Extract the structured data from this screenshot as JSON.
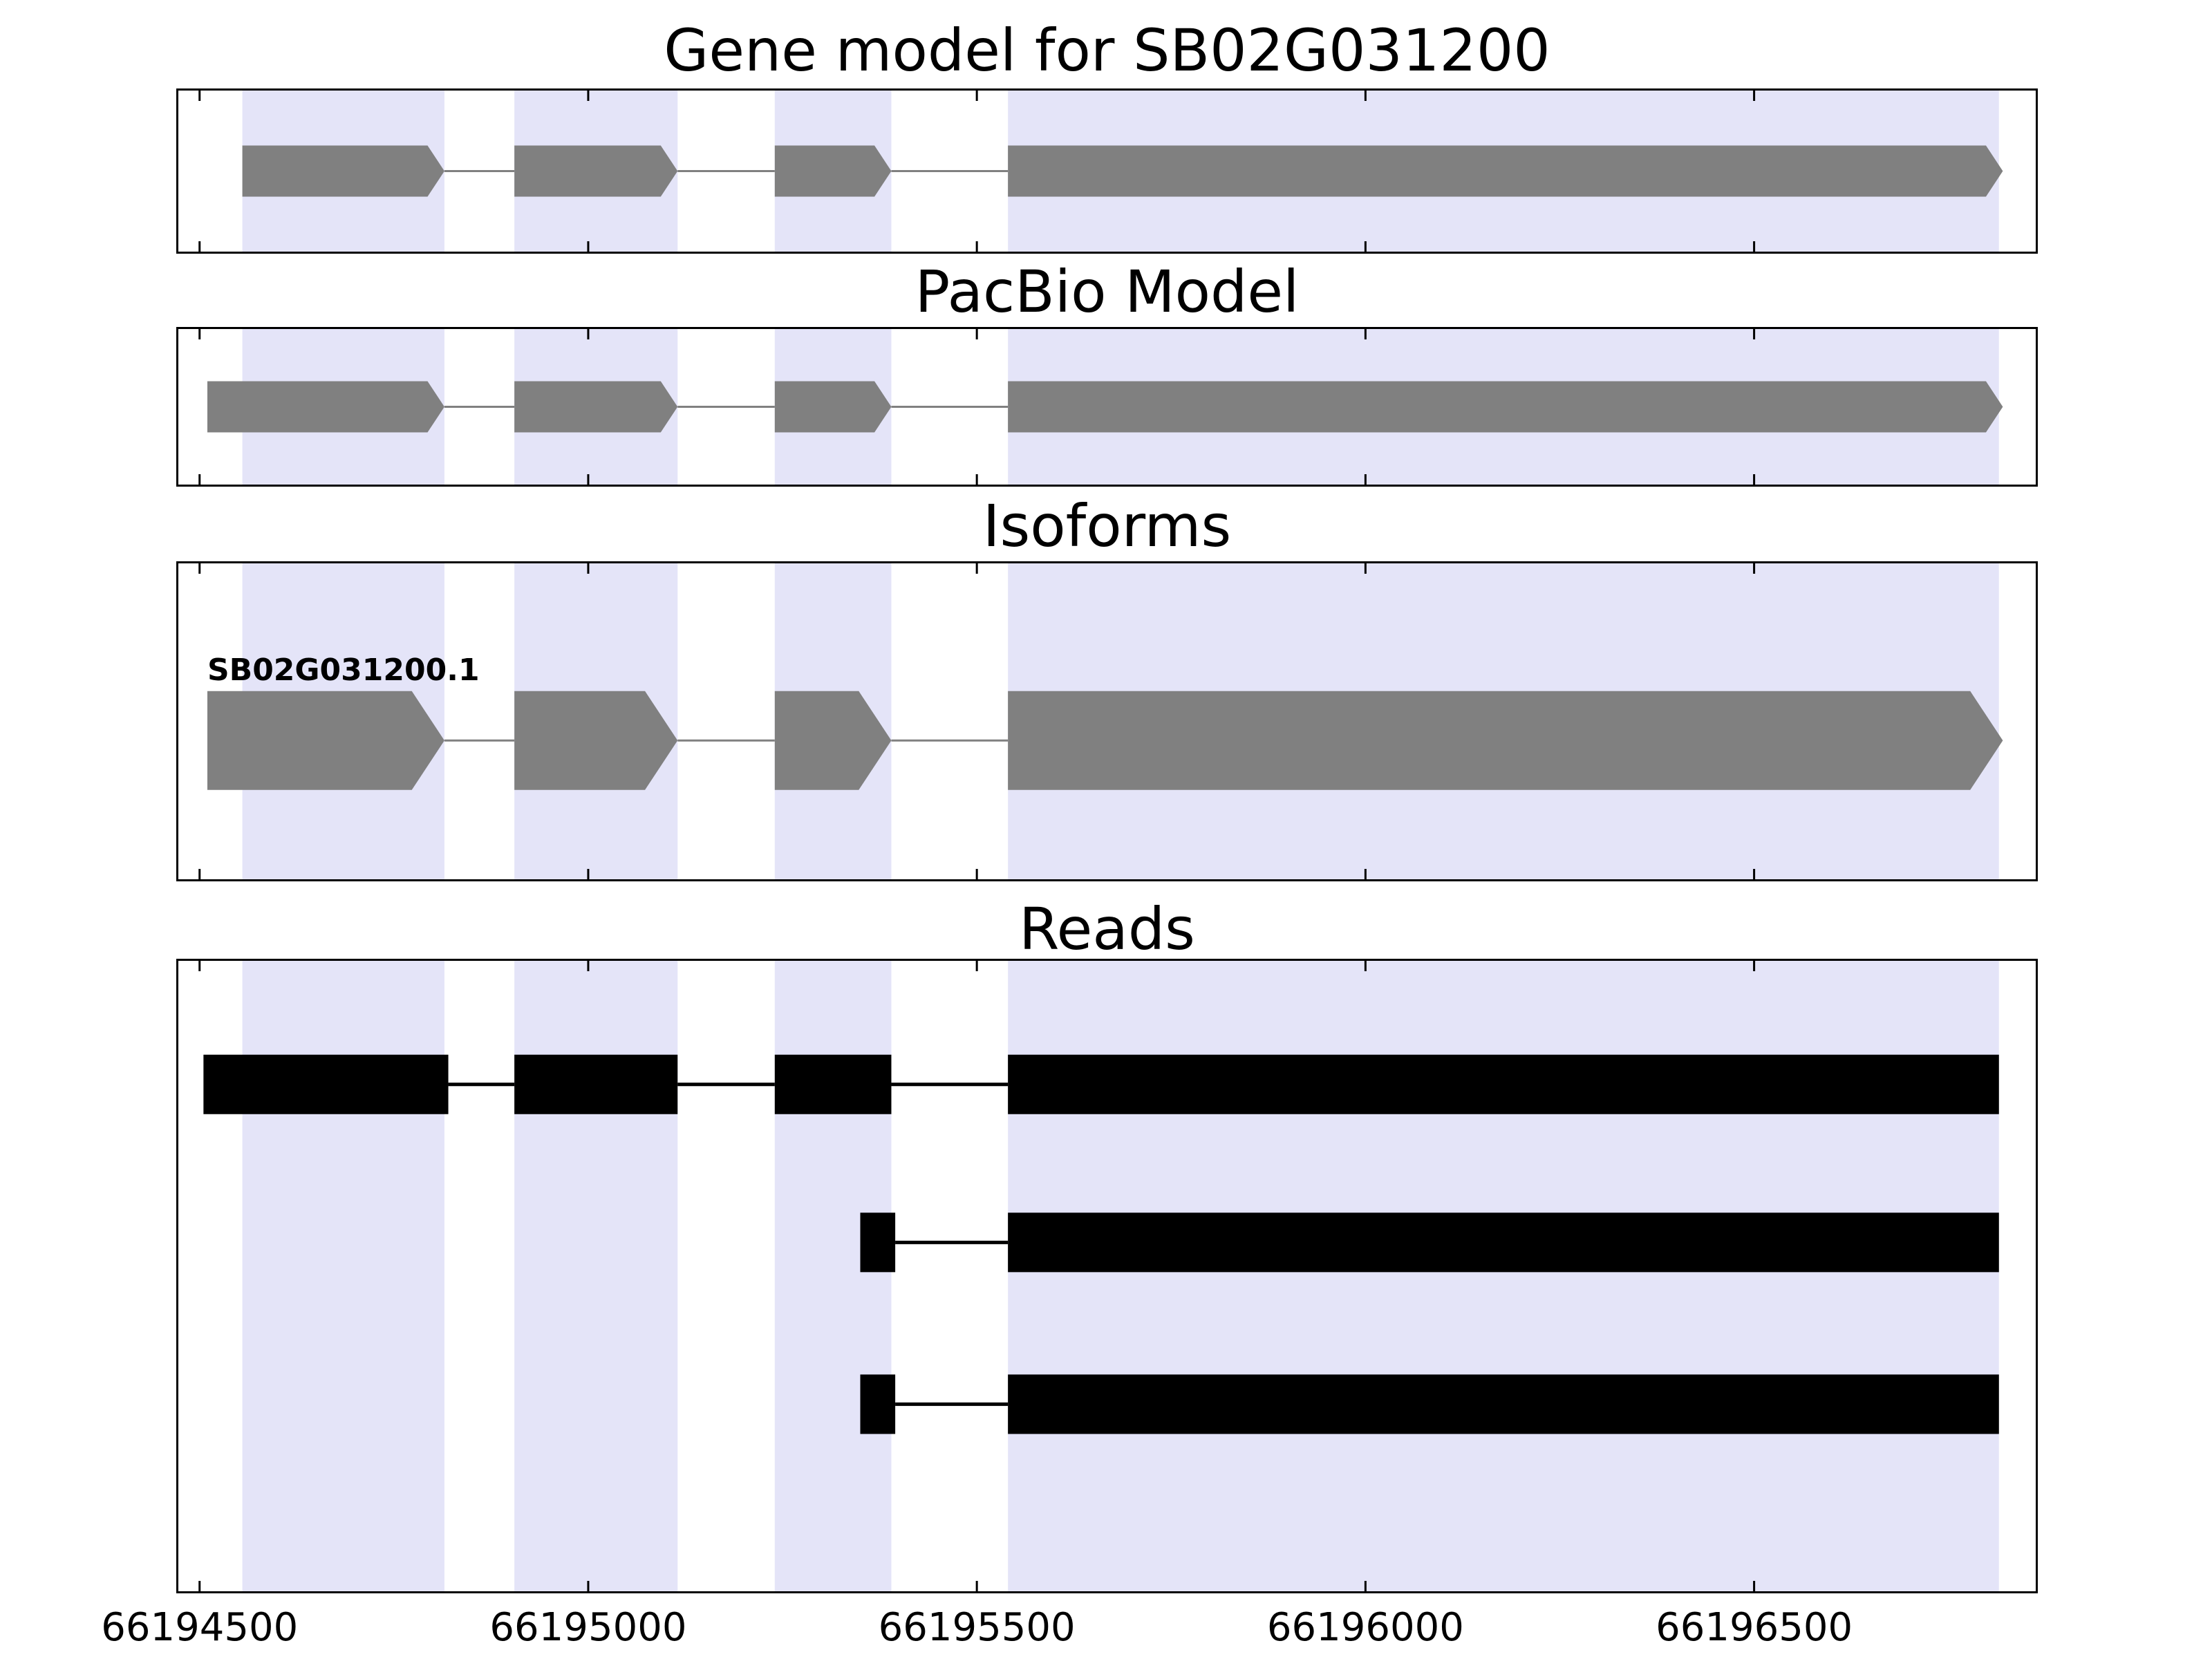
{
  "chart_data": {
    "type": "gene-model-tracks",
    "x_axis": {
      "tick_values": [
        66194500,
        66195000,
        66195500,
        66196000,
        66196500
      ],
      "tick_labels": [
        "66194500",
        "66195000",
        "66195500",
        "66196000",
        "66196500"
      ],
      "range": [
        66194470,
        66196865
      ]
    },
    "highlight_regions": [
      [
        66194555,
        66194815
      ],
      [
        66194905,
        66195115
      ],
      [
        66195240,
        66195390
      ],
      [
        66195540,
        66196815
      ]
    ],
    "panels": [
      {
        "title": "Gene model for SB02G031200",
        "features": [
          {
            "name": "SB02G031200",
            "type": "gene",
            "arrow": true,
            "color": "#808080",
            "exons": [
              [
                66194555,
                66194815
              ],
              [
                66194905,
                66195115
              ],
              [
                66195240,
                66195390
              ],
              [
                66195540,
                66196820
              ]
            ]
          }
        ]
      },
      {
        "title": "PacBio Model",
        "features": [
          {
            "name": "pacbio-model",
            "type": "gene",
            "arrow": true,
            "color": "#808080",
            "exons": [
              [
                66194510,
                66194815
              ],
              [
                66194905,
                66195115
              ],
              [
                66195240,
                66195390
              ],
              [
                66195540,
                66196820
              ]
            ]
          }
        ]
      },
      {
        "title": "Isoforms",
        "features": [
          {
            "name": "SB02G031200.1",
            "label": "SB02G031200.1",
            "type": "isoform",
            "arrow": true,
            "color": "#808080",
            "exons": [
              [
                66194510,
                66194815
              ],
              [
                66194905,
                66195115
              ],
              [
                66195240,
                66195390
              ],
              [
                66195540,
                66196820
              ]
            ]
          }
        ]
      },
      {
        "title": "Reads",
        "features": [
          {
            "name": "read-1",
            "type": "read",
            "arrow": false,
            "color": "#000000",
            "exons": [
              [
                66194505,
                66194820
              ],
              [
                66194905,
                66195115
              ],
              [
                66195240,
                66195390
              ],
              [
                66195540,
                66196815
              ]
            ]
          },
          {
            "name": "read-2",
            "type": "read",
            "arrow": false,
            "color": "#000000",
            "exons": [
              [
                66195350,
                66195395
              ],
              [
                66195540,
                66196815
              ]
            ]
          },
          {
            "name": "read-3",
            "type": "read",
            "arrow": false,
            "color": "#000000",
            "exons": [
              [
                66195350,
                66195395
              ],
              [
                66195540,
                66196815
              ]
            ]
          }
        ]
      }
    ],
    "colors": {
      "highlight_band": "#e4e4f8",
      "gene_fill": "#808080",
      "intron_line": "#808080",
      "read_fill": "#000000",
      "axis": "#000000",
      "background": "#ffffff"
    }
  }
}
